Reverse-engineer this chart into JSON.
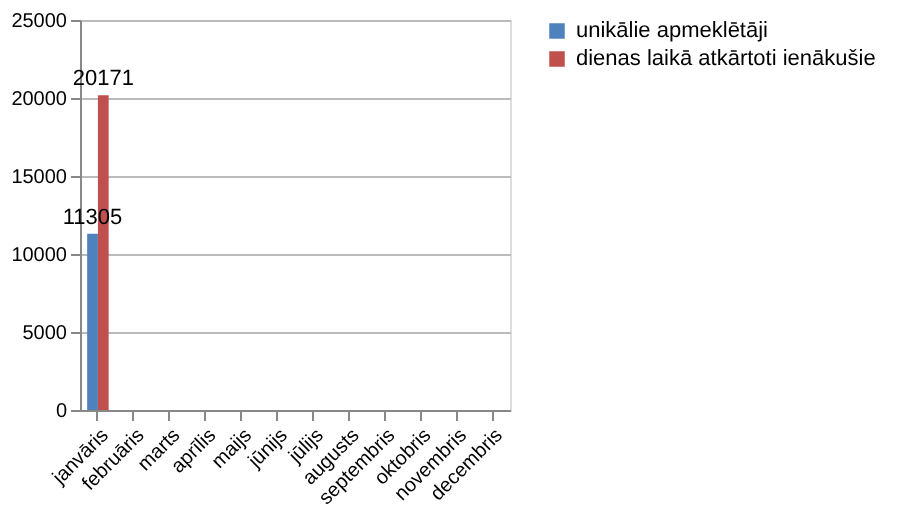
{
  "chart_data": {
    "type": "bar",
    "categories": [
      "janvāris",
      "februāris",
      "marts",
      "aprīlis",
      "maijs",
      "jūnijs",
      "jūlijs",
      "augusts",
      "septembris",
      "oktobris",
      "novembris",
      "decembris"
    ],
    "series": [
      {
        "name": "unikālie apmeklētāji",
        "color": "#4f81bd",
        "values": [
          11305,
          null,
          null,
          null,
          null,
          null,
          null,
          null,
          null,
          null,
          null,
          null
        ]
      },
      {
        "name": "dienas laikā atkārtoti ienākušie",
        "color": "#c0504d",
        "values": [
          20171,
          null,
          null,
          null,
          null,
          null,
          null,
          null,
          null,
          null,
          null,
          null
        ]
      }
    ],
    "ylim": [
      0,
      25000
    ],
    "yticks": [
      0,
      5000,
      10000,
      15000,
      20000,
      25000
    ],
    "grid": "y",
    "legend": "right",
    "data_labels": true
  }
}
